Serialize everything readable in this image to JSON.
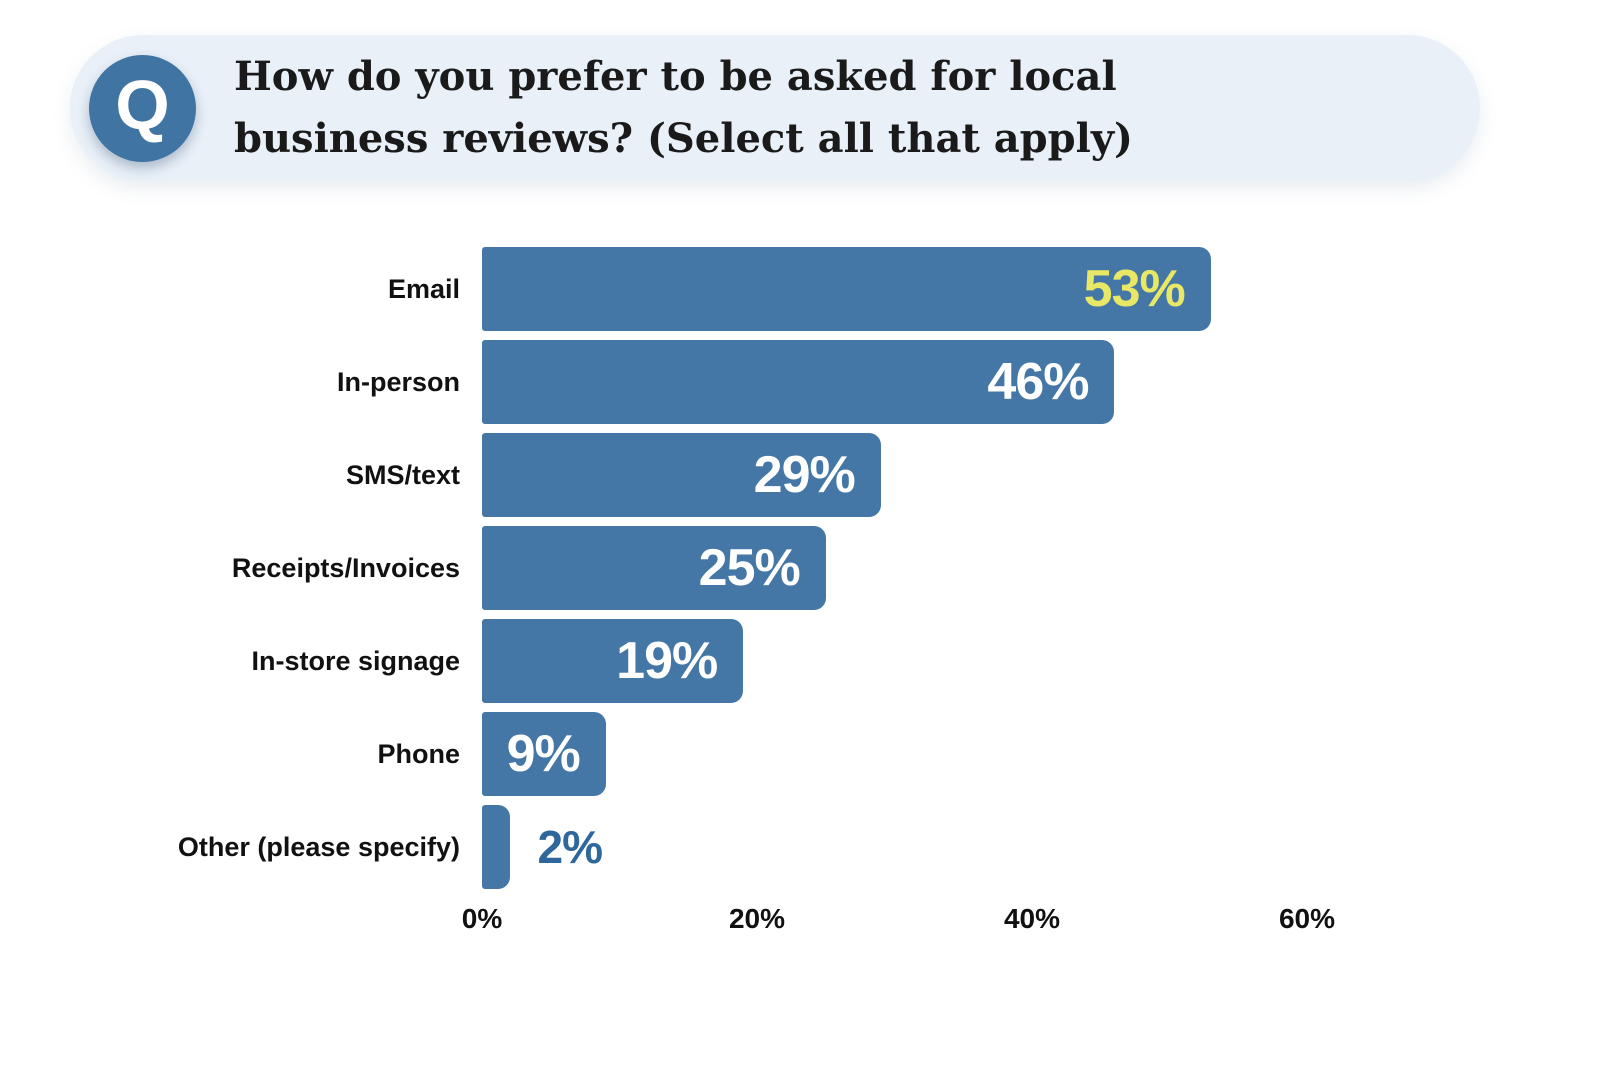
{
  "header": {
    "icon_letter": "Q",
    "question_lines": [
      "How do you prefer to be asked for local",
      "business reviews? (Select all that apply)"
    ]
  },
  "colors": {
    "bar": "#4577A6",
    "pill_bg": "#E9F0F8",
    "icon_circle": "#3F74A3",
    "question_text": "#1A1A1A",
    "value_inside": "#FFFFFF",
    "value_highlight": "#E9E766",
    "value_outside": "#2F679C",
    "axis_text": "#111111"
  },
  "chart_data": {
    "type": "bar",
    "orientation": "horizontal",
    "title": "How do you prefer to be asked for local business reviews? (Select all that apply)",
    "categories": [
      "Email",
      "In-person",
      "SMS/text",
      "Receipts/Invoices",
      "In-store signage",
      "Phone",
      "Other (please specify)"
    ],
    "values": [
      53,
      46,
      29,
      25,
      19,
      9,
      2
    ],
    "value_labels": [
      "53%",
      "46%",
      "29%",
      "25%",
      "19%",
      "9%",
      "2%"
    ],
    "value_label_inside": [
      true,
      true,
      true,
      true,
      true,
      true,
      false
    ],
    "value_label_colors": [
      "#E9E766",
      "#FFFFFF",
      "#FFFFFF",
      "#FFFFFF",
      "#FFFFFF",
      "#FFFFFF",
      "#2F679C"
    ],
    "xlabel": "",
    "ylabel": "",
    "xlim": [
      0,
      60
    ],
    "x_ticks": [
      "0%",
      "20%",
      "40%",
      "60%"
    ],
    "x_tick_values": [
      0,
      20,
      40,
      60
    ],
    "grid": false,
    "legend": false
  }
}
